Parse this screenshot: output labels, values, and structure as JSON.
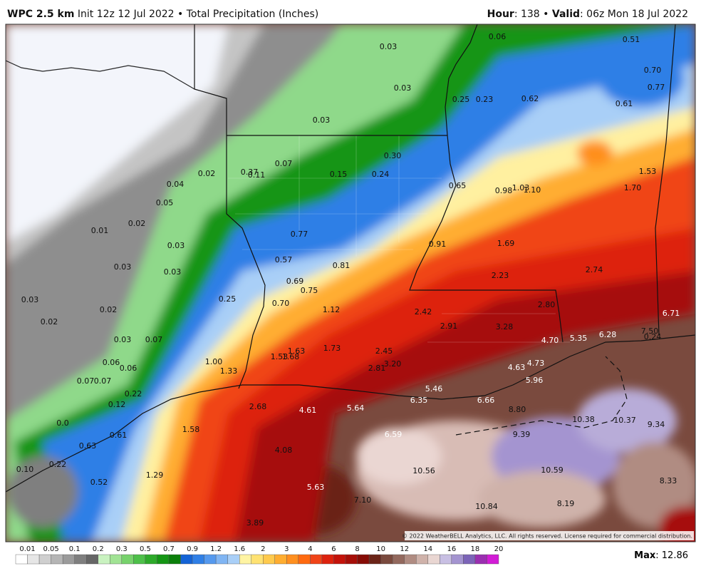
{
  "header": {
    "title": "WPC 2.5 km",
    "subtitle": "Init 12z 12 Jul 2022 • Total Precipitation (Inches)",
    "hour_label": "Hour",
    "hour_value": ": 138 • ",
    "valid_label": "Valid",
    "valid_value": ": 06z Mon 18 Jul 2022"
  },
  "map_labels": [
    "0.03",
    "0.06",
    "0.51",
    "0.70",
    "0.77",
    "0.03",
    "0.25",
    "0.23",
    "0.62",
    "0.61",
    "0.03",
    "0.30",
    "0.07",
    "0.37",
    "0.11",
    "0.15",
    "0.24",
    "0.02",
    "0.04",
    "1.53",
    "0.65",
    "0.98",
    "1.03",
    "1.10",
    "1.70",
    "0.05",
    "0.02",
    "0.01",
    "0.77",
    "0.91",
    "1.69",
    "0.03",
    "0.57",
    "0.81",
    "0.03",
    "0.03",
    "2.23",
    "2.74",
    "0.69",
    "0.75",
    "0.03",
    "0.25",
    "0.70",
    "2.80",
    "0.02",
    "1.12",
    "2.42",
    "6.71",
    "0.02",
    "2.91",
    "3.28",
    "7.50",
    "6.28",
    "0.24",
    "0.03",
    "0.07",
    "5.35",
    "4.70",
    "1.73",
    "1.63",
    "2.45",
    "1.53",
    "1.68",
    "1.00",
    "0.06",
    "0.06",
    "3.20",
    "4.73",
    "2.81",
    "4.63",
    "1.33",
    "0.07",
    "0.07",
    "5.96",
    "5.46",
    "0.22",
    "6.35",
    "6.66",
    "0.12",
    "2.68",
    "4.61",
    "5.64",
    "8.80",
    "0.0",
    "10.38",
    "10.37",
    "9.34",
    "1.58",
    "0.61",
    "6.59",
    "9.39",
    "0.63",
    "4.08",
    "0.22",
    "0.10",
    "10.56",
    "10.59",
    "1.29",
    "0.52",
    "8.33",
    "5.63",
    "7.10",
    "8.19",
    "10.84",
    "3.89"
  ],
  "copyright": "© 2022 WeatherBELL Analytics, LLC. All rights reserved. License required for commercial distribution.",
  "legend": {
    "labels": [
      "0.01",
      "0.05",
      "0.1",
      "0.2",
      "0.3",
      "0.5",
      "0.7",
      "0.9",
      "1.2",
      "1.6",
      "2",
      "3",
      "4",
      "6",
      "8",
      "10",
      "12",
      "14",
      "16",
      "18",
      "20"
    ],
    "colors": [
      "#ffffff",
      "#e6e6e6",
      "#cfcfcf",
      "#b5b5b5",
      "#9b9b9b",
      "#7f7f7f",
      "#666666",
      "#c9f2c0",
      "#a1e394",
      "#77d26c",
      "#4ec04a",
      "#2daa2a",
      "#149514",
      "#0b7f0b",
      "#1463d6",
      "#2f7fe6",
      "#5599ee",
      "#80b5f3",
      "#a9cff7",
      "#fff4a3",
      "#ffe272",
      "#ffca4d",
      "#ffad30",
      "#ff8f1f",
      "#ff6a10",
      "#f04418",
      "#dd220e",
      "#c4130a",
      "#a60e08",
      "#860c06",
      "#6b2418",
      "#7a4a3e",
      "#93695e",
      "#b08c82",
      "#cfb2aa",
      "#e9d6d2",
      "#c8bfe3",
      "#a494d0",
      "#7c64b8",
      "#9a2fb0",
      "#d21cd6"
    ]
  },
  "max": {
    "label": "Max",
    "value": ": 12.86"
  }
}
